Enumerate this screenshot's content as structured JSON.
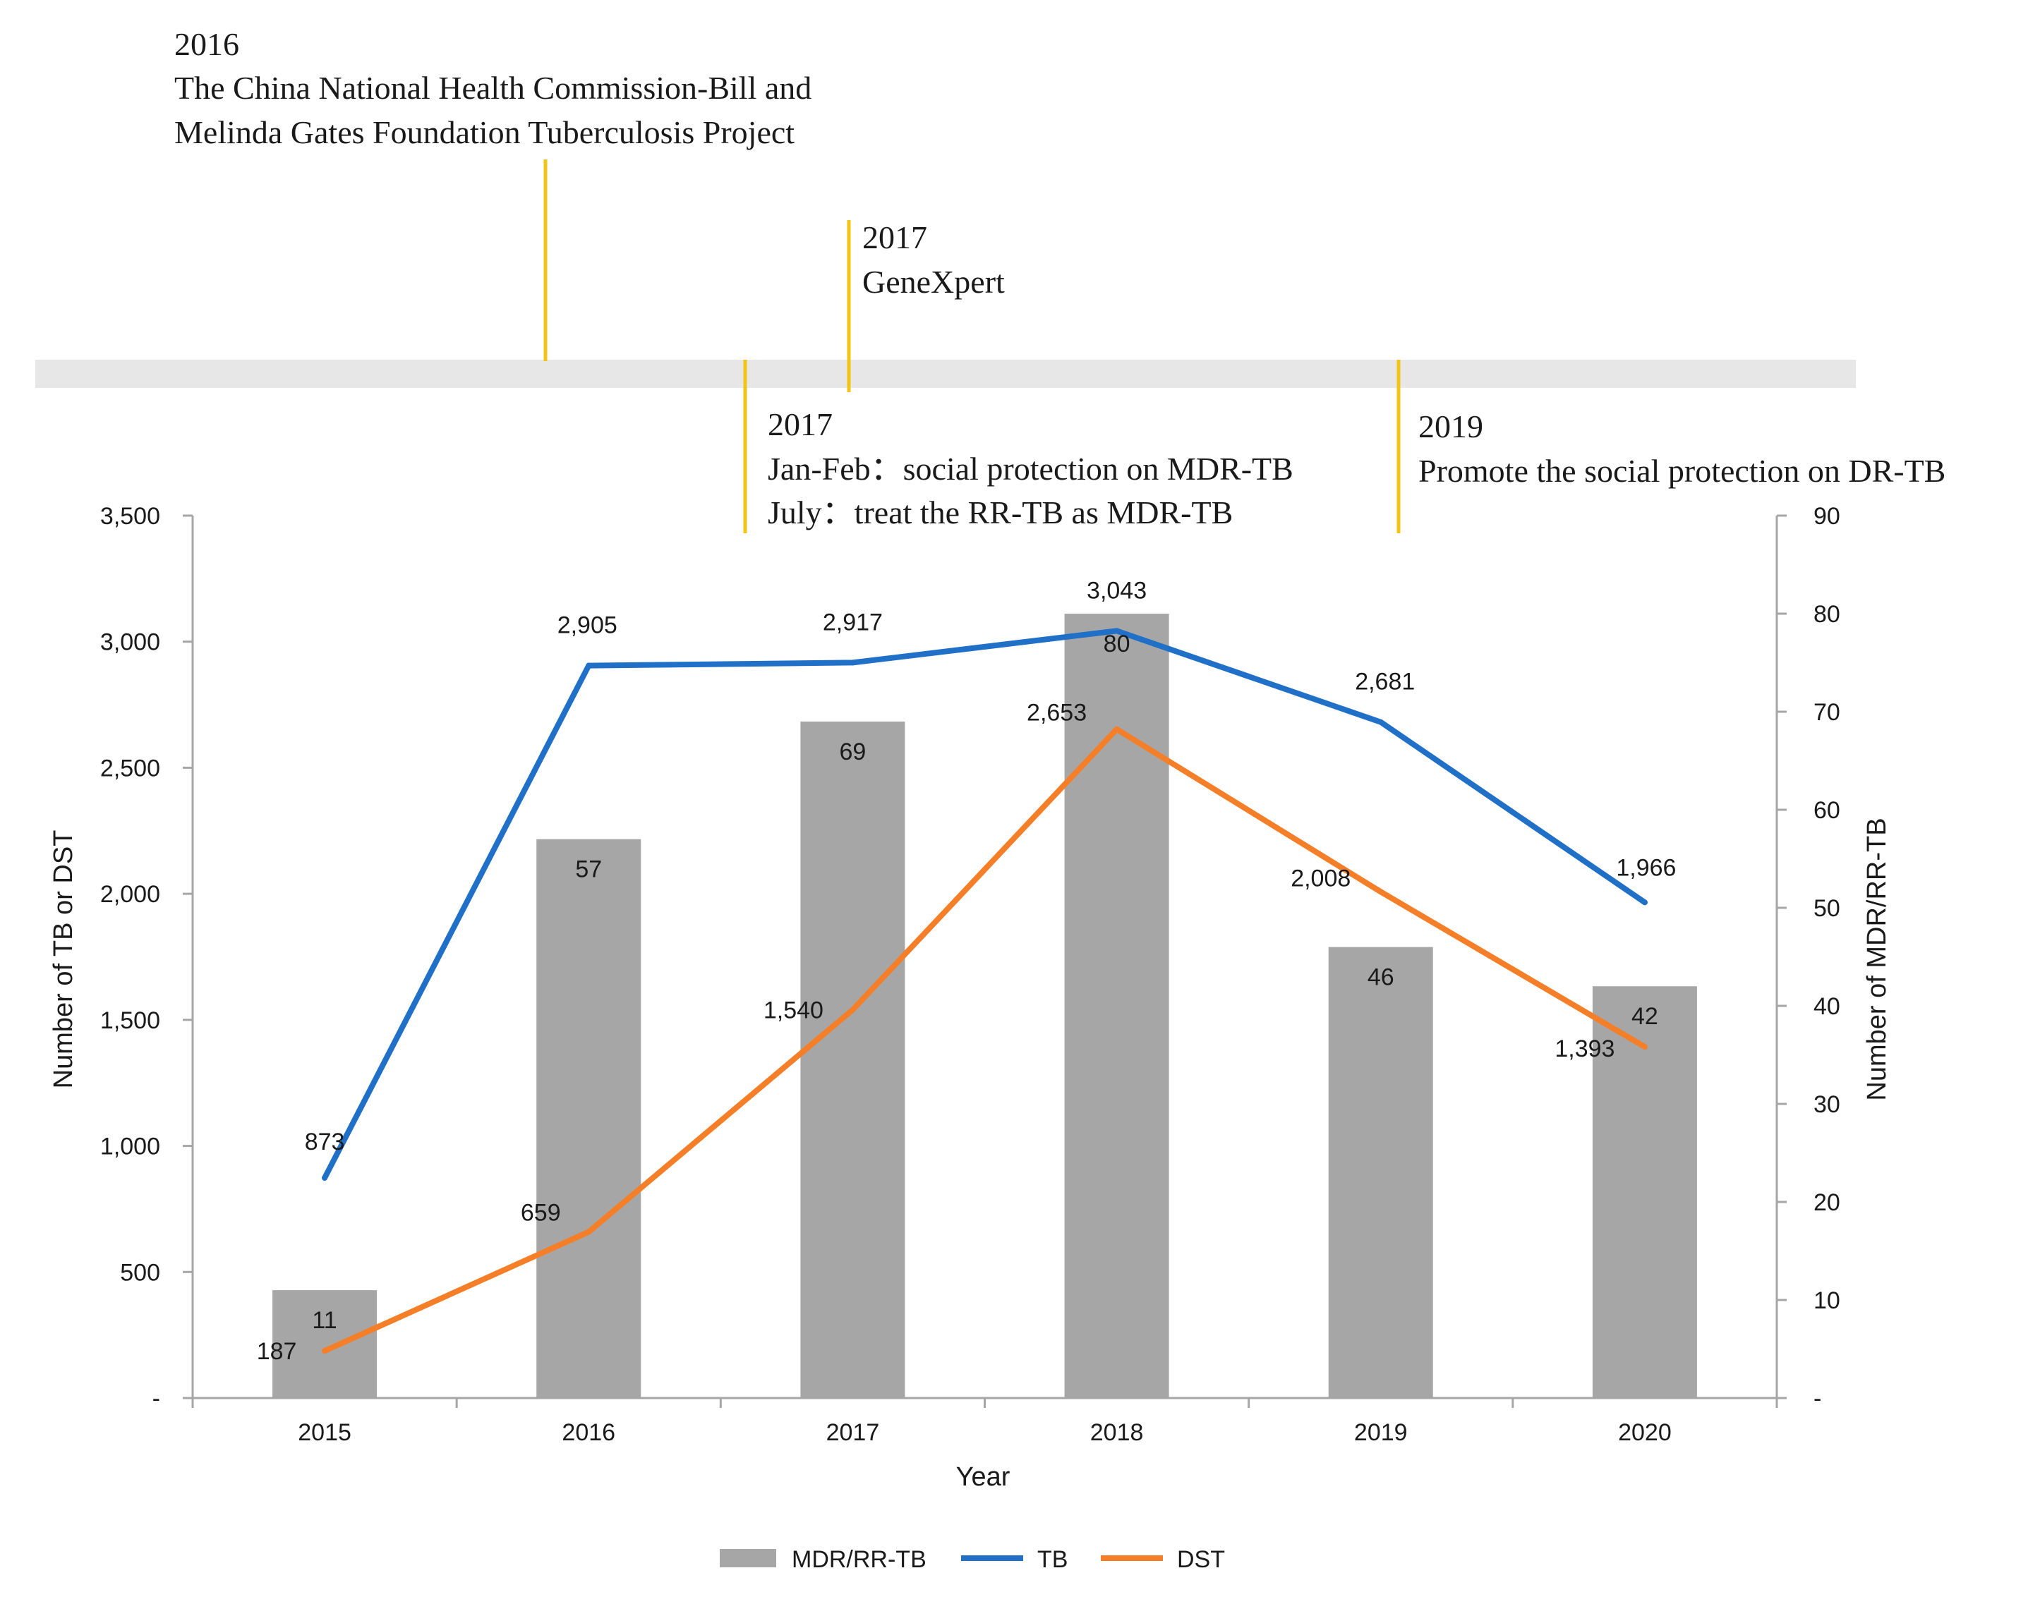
{
  "colors": {
    "bar": "#a6a6a6",
    "tb_line": "#2170c8",
    "dst_line": "#f57f28",
    "timeline_band": "#e7e7e7",
    "event_marker": "#f2c418",
    "axis": "#a6a6a6"
  },
  "timeline": {
    "events": [
      {
        "year": "2016",
        "lines": [
          "The China National Health Commission-Bill and",
          "Melinda Gates Foundation Tuberculosis Project"
        ]
      },
      {
        "year": "2017",
        "lines": [
          "GeneXpert"
        ]
      },
      {
        "year": "2017",
        "lines": [
          "Jan-Feb：social protection on MDR-TB",
          "July：treat the RR-TB as MDR-TB"
        ]
      },
      {
        "year": "2019",
        "lines": [
          "Promote the social protection on DR-TB"
        ]
      }
    ]
  },
  "chart_data": {
    "type": "bar+line",
    "title": "",
    "xlabel": "Year",
    "ylabel_left": "Number of TB or DST",
    "ylabel_right": "Number of MDR/RR-TB",
    "ylim_left": [
      0,
      3500
    ],
    "ylim_right": [
      0,
      90
    ],
    "yticks_left": [
      "-",
      "500",
      "1,000",
      "1,500",
      "2,000",
      "2,500",
      "3,000",
      "3,500"
    ],
    "yticks_right": [
      "-",
      "10",
      "20",
      "30",
      "40",
      "50",
      "60",
      "70",
      "80",
      "90"
    ],
    "categories": [
      "2015",
      "2016",
      "2017",
      "2018",
      "2019",
      "2020"
    ],
    "series": [
      {
        "name": "MDR/RR-TB",
        "kind": "bar",
        "axis": "right",
        "values": [
          11,
          57,
          69,
          80,
          46,
          42
        ],
        "labels": [
          "11",
          "57",
          "69",
          "80",
          "46",
          "42"
        ]
      },
      {
        "name": "TB",
        "kind": "line",
        "axis": "left",
        "values": [
          873,
          2905,
          2917,
          3043,
          2681,
          1966
        ],
        "labels": [
          "873",
          "2,905",
          "2,917",
          "3,043",
          "2,681",
          "1,966"
        ]
      },
      {
        "name": "DST",
        "kind": "line",
        "axis": "left",
        "values": [
          187,
          659,
          1540,
          2653,
          2008,
          1393
        ],
        "labels": [
          "187",
          "659",
          "1,540",
          "2,653",
          "2,008",
          "1,393"
        ]
      }
    ],
    "legend": [
      "MDR/RR-TB",
      "TB",
      "DST"
    ],
    "legend_position": "bottom",
    "grid": false
  }
}
